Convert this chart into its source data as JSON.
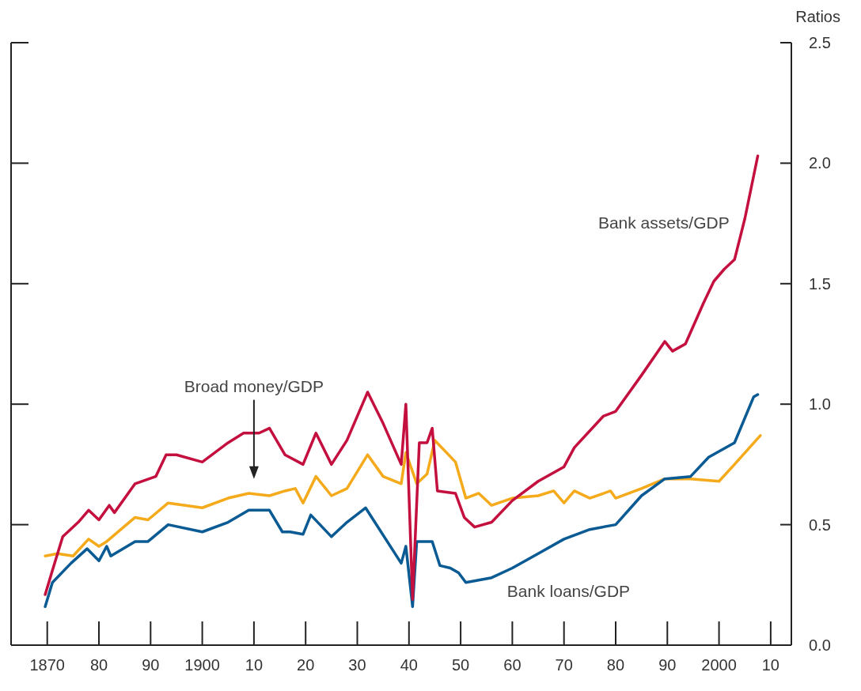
{
  "chart_data": {
    "type": "line",
    "ylabel": "Ratios",
    "xlim": [
      1863,
      2014
    ],
    "ylim": [
      0,
      2.5
    ],
    "xticks": [
      1870,
      {
        "value": 1880,
        "label": "80"
      },
      {
        "value": 1890,
        "label": "90"
      },
      1900,
      {
        "value": 1910,
        "label": "10"
      },
      {
        "value": 1920,
        "label": "20"
      },
      {
        "value": 1930,
        "label": "30"
      },
      {
        "value": 1940,
        "label": "40"
      },
      {
        "value": 1950,
        "label": "50"
      },
      {
        "value": 1960,
        "label": "60"
      },
      {
        "value": 1970,
        "label": "70"
      },
      {
        "value": 1980,
        "label": "80"
      },
      {
        "value": 1990,
        "label": "90"
      },
      2000,
      {
        "value": 2010,
        "label": "10"
      }
    ],
    "yticks": [
      {
        "value": 0,
        "label": "0.0"
      },
      0.5,
      {
        "value": 1,
        "label": "1.0"
      },
      1.5,
      {
        "value": 2,
        "label": "2.0"
      },
      2.5
    ],
    "line_style": "solid",
    "marker": "none",
    "annotations": [
      "Broad money/GDP"
    ],
    "series": [
      {
        "name": "Bank assets/GDP",
        "color": "#c4103f",
        "x": [
          1869.6,
          1871,
          1873,
          1876,
          1878,
          1880,
          1882,
          1883,
          1887,
          1891,
          1893,
          1895,
          1900,
          1905,
          1908,
          1911,
          1913,
          1916,
          1919.5,
          1922,
          1925,
          1928,
          1932,
          1935,
          1938.5,
          1939.4,
          1940.7,
          1942,
          1943.5,
          1944.5,
          1945.5,
          1949,
          1950.7,
          1952.7,
          1956,
          1960,
          1965,
          1970,
          1972,
          1977.6,
          1980,
          1985,
          1989.5,
          1991,
          1993.5,
          1997,
          1999,
          2001,
          2003,
          2005,
          2007.5
        ],
        "values": [
          0.21,
          0.31,
          0.45,
          0.51,
          0.56,
          0.52,
          0.58,
          0.55,
          0.67,
          0.7,
          0.79,
          0.79,
          0.76,
          0.84,
          0.88,
          0.88,
          0.9,
          0.79,
          0.75,
          0.88,
          0.75,
          0.85,
          1.05,
          0.92,
          0.75,
          1,
          0.19,
          0.84,
          0.84,
          0.9,
          0.64,
          0.63,
          0.53,
          0.49,
          0.51,
          0.6,
          0.68,
          0.74,
          0.82,
          0.95,
          0.97,
          1.12,
          1.26,
          1.22,
          1.25,
          1.42,
          1.51,
          1.56,
          1.6,
          1.77,
          2.03
        ]
      },
      {
        "name": "Bank loans/GDP",
        "color": "#0a5a94",
        "x": [
          1869.6,
          1871,
          1874.6,
          1877.7,
          1880,
          1881.5,
          1882.3,
          1887,
          1889.5,
          1893.4,
          1900,
          1905,
          1909,
          1913,
          1915.5,
          1917,
          1919.5,
          1921,
          1925,
          1928,
          1931.6,
          1938.5,
          1939.4,
          1940.7,
          1941.5,
          1944.5,
          1946,
          1948,
          1949.6,
          1951,
          1956,
          1960,
          1965,
          1970,
          1975,
          1980,
          1985,
          1989.5,
          1994.5,
          1998,
          2003,
          2006.7,
          2007.5
        ],
        "values": [
          0.16,
          0.26,
          0.34,
          0.4,
          0.35,
          0.41,
          0.37,
          0.43,
          0.43,
          0.5,
          0.47,
          0.51,
          0.56,
          0.56,
          0.47,
          0.47,
          0.46,
          0.54,
          0.45,
          0.51,
          0.57,
          0.34,
          0.41,
          0.16,
          0.43,
          0.43,
          0.33,
          0.32,
          0.3,
          0.26,
          0.28,
          0.32,
          0.38,
          0.44,
          0.48,
          0.5,
          0.62,
          0.69,
          0.7,
          0.78,
          0.84,
          1.03,
          1.04
        ]
      },
      {
        "color": "#f5aa1c",
        "x": [
          1869.6,
          1872,
          1875,
          1878,
          1880,
          1881.5,
          1887,
          1889.5,
          1893.4,
          1900,
          1905,
          1909,
          1913,
          1916,
          1918,
          1919.5,
          1922,
          1925,
          1928,
          1932,
          1935,
          1938.5,
          1939.4,
          1941.5,
          1943.5,
          1945,
          1949,
          1951,
          1953.5,
          1956,
          1960,
          1965,
          1968,
          1970,
          1972,
          1975,
          1979,
          1980,
          1985,
          1989.5,
          1994.5,
          2000,
          2003,
          2008
        ],
        "values": [
          0.37,
          0.38,
          0.37,
          0.44,
          0.41,
          0.43,
          0.53,
          0.52,
          0.59,
          0.57,
          0.61,
          0.63,
          0.62,
          0.64,
          0.65,
          0.59,
          0.7,
          0.62,
          0.65,
          0.79,
          0.7,
          0.67,
          0.8,
          0.67,
          0.71,
          0.85,
          0.76,
          0.61,
          0.63,
          0.58,
          0.61,
          0.62,
          0.64,
          0.59,
          0.64,
          0.61,
          0.64,
          0.61,
          0.65,
          0.69,
          0.69,
          0.68,
          0.75,
          0.87
        ]
      }
    ]
  }
}
